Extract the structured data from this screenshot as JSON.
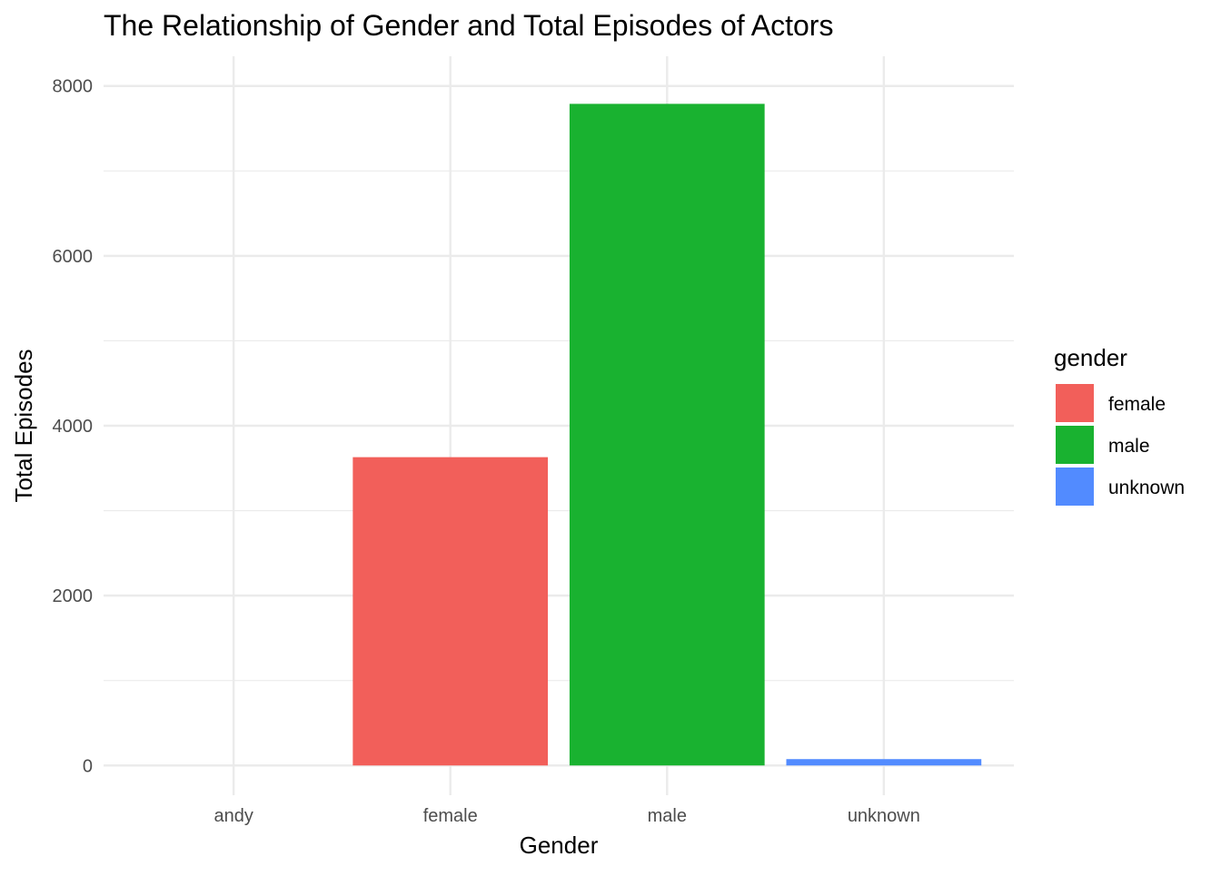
{
  "chart_data": {
    "type": "bar",
    "title": "The Relationship of Gender and Total Episodes of Actors",
    "xlabel": "Gender",
    "ylabel": "Total Episodes",
    "categories": [
      "andy",
      "female",
      "male",
      "unknown"
    ],
    "values": [
      0,
      3630,
      7790,
      75
    ],
    "fill_colors": [
      "#F8766D",
      "#F25F5A",
      "#19B230",
      "#528BFF"
    ],
    "ylim": [
      -350,
      8350
    ],
    "yticks": [
      0,
      2000,
      4000,
      6000,
      8000
    ],
    "grid": true,
    "legend": {
      "title": "gender",
      "position": "right",
      "items": [
        {
          "label": "female",
          "color": "#F25F5A"
        },
        {
          "label": "male",
          "color": "#19B230"
        },
        {
          "label": "unknown",
          "color": "#528BFF"
        }
      ]
    }
  }
}
